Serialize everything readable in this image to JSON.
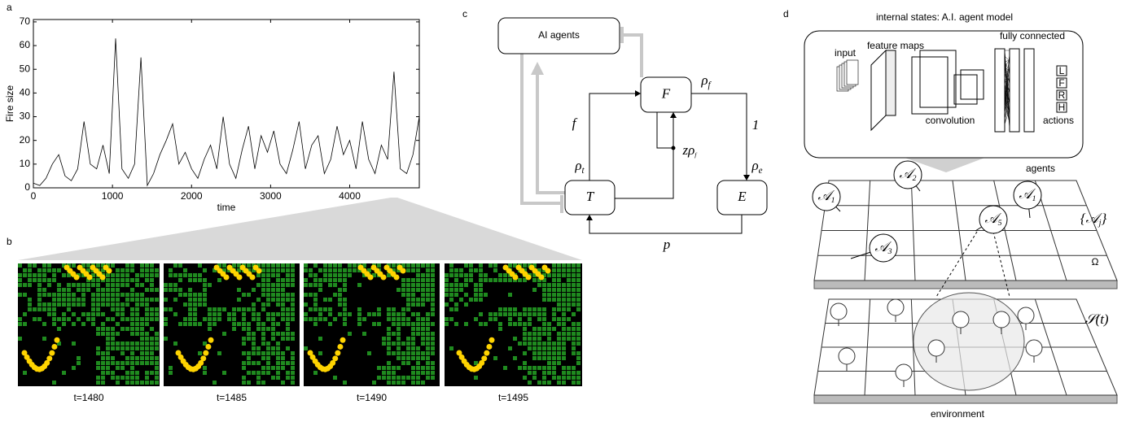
{
  "panel_labels": [
    "a",
    "b",
    "c",
    "d"
  ],
  "chart_data": {
    "type": "line",
    "x_label": "time",
    "y_label": "Fire size",
    "color": "#000000",
    "x": [
      0,
      80,
      160,
      240,
      320,
      400,
      480,
      560,
      640,
      720,
      800,
      880,
      960,
      1040,
      1120,
      1200,
      1280,
      1360,
      1440,
      1520,
      1600,
      1680,
      1760,
      1840,
      1920,
      2000,
      2080,
      2160,
      2240,
      2320,
      2400,
      2480,
      2560,
      2640,
      2720,
      2800,
      2880,
      2960,
      3040,
      3120,
      3200,
      3280,
      3360,
      3440,
      3520,
      3600,
      3680,
      3760,
      3840,
      3920,
      4000,
      4080,
      4160,
      4240,
      4320,
      4400,
      4480,
      4560,
      4640,
      4720,
      4800,
      4880
    ],
    "values": [
      2,
      1,
      4,
      10,
      14,
      5,
      3,
      8,
      28,
      10,
      8,
      18,
      6,
      63,
      8,
      4,
      10,
      55,
      1,
      6,
      14,
      20,
      27,
      10,
      15,
      8,
      4,
      12,
      18,
      8,
      30,
      10,
      4,
      16,
      26,
      8,
      22,
      15,
      24,
      10,
      6,
      16,
      28,
      8,
      18,
      22,
      6,
      12,
      26,
      14,
      20,
      8,
      28,
      12,
      6,
      18,
      12,
      49,
      8,
      6,
      14,
      30
    ],
    "xlim": [
      0,
      4880
    ],
    "ylim": [
      0,
      71
    ],
    "xticks": [
      0,
      1000,
      2000,
      3000,
      4000
    ],
    "yticks": [
      0,
      10,
      20,
      30,
      40,
      50,
      60,
      70
    ]
  },
  "snapshots": {
    "captions": [
      "t=1480",
      "t=1485",
      "t=1490",
      "t=1495"
    ]
  },
  "diagram": {
    "nodes": [
      {
        "label": "AI agents"
      },
      {
        "label": "F"
      },
      {
        "label": "T"
      },
      {
        "label": "E"
      }
    ],
    "edge_labels": [
      {
        "text": "f"
      },
      {
        "text": "ρ",
        "sub": "f"
      },
      {
        "text": "1"
      },
      {
        "text": "zρ",
        "sub": "f"
      },
      {
        "text": "ρ",
        "sub": "t"
      },
      {
        "text": "ρ",
        "sub": "e"
      },
      {
        "text": "p"
      }
    ]
  },
  "model": {
    "title": "internal states: A.I. agent model",
    "labels": [
      "input",
      "feature maps",
      "convolution",
      "fully connected",
      "actions"
    ],
    "actions": [
      "L",
      "F",
      "R",
      "H"
    ],
    "agents_label": "agents",
    "agents": [
      {
        "text": "𝒜",
        "sub": "1"
      },
      {
        "text": "𝒜",
        "sub": "2"
      },
      {
        "text": "𝒜",
        "sub": "1"
      },
      {
        "text": "𝒜",
        "sub": "5"
      },
      {
        "text": "𝒜",
        "sub": "3"
      }
    ],
    "set_label": {
      "text": "{𝒜",
      "sub": "j",
      "after": "}"
    },
    "omega": "Ω",
    "state_label": "𝒮(t)",
    "environment_label": "environment"
  }
}
